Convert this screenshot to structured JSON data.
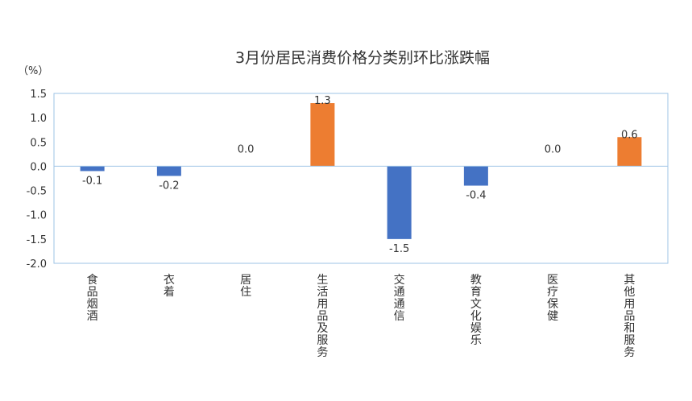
{
  "chart_data": {
    "type": "bar",
    "title": "3月份居民消费价格分类别环比涨跌幅",
    "ylabel": "（%）",
    "xlabel": "",
    "categories": [
      "食品烟酒",
      "衣着",
      "居住",
      "生活用品及服务",
      "交通通信",
      "教育文化娱乐",
      "医疗保健",
      "其他用品和服务"
    ],
    "values": [
      -0.1,
      -0.2,
      0.0,
      1.3,
      -1.5,
      -0.4,
      0.0,
      0.6
    ],
    "data_labels": [
      "-0.1",
      "-0.2",
      "0.0",
      "1.3",
      "-1.5",
      "-0.4",
      "0.0",
      "0.6"
    ],
    "ylim": [
      -2.0,
      1.5
    ],
    "yticks": [
      1.5,
      1.0,
      0.5,
      0.0,
      -0.5,
      -1.0,
      -1.5,
      -2.0
    ],
    "ytick_labels": [
      "1.5",
      "1.0",
      "0.5",
      "0.0",
      "-0.5",
      "-1.0",
      "-1.5",
      "-2.0"
    ],
    "grid": false,
    "colors": {
      "negative": "#4472c4",
      "positive": "#ed7d31",
      "axis": "#9dc3e6",
      "text": "#333333"
    }
  }
}
